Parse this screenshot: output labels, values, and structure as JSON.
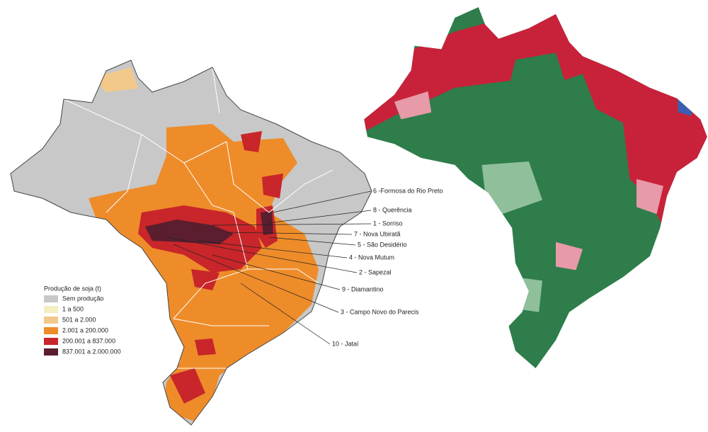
{
  "legend": {
    "title": "Produção de soja (t)",
    "items": [
      {
        "label": "Sem produção",
        "color": "#c8c8c8"
      },
      {
        "label": "1 a 500",
        "color": "#f5eec0"
      },
      {
        "label": "501 a 2.000",
        "color": "#f2c98a"
      },
      {
        "label": "2.001 a 200.000",
        "color": "#ee8c2a"
      },
      {
        "label": "200.001 a 837.000",
        "color": "#c8262a"
      },
      {
        "label": "837.001 a 2.000.000",
        "color": "#5a1e2e"
      }
    ]
  },
  "cities": [
    "6 -Formosa do Rio Preto",
    "8 - Querência",
    "1 - Sorriso",
    "7 - Nova Ubiratã",
    "5 - São Desidério",
    "4 - Nova Mutum",
    "2 - Sapezal",
    "9 - Diamantino",
    "3 - Campo Novo do Parecis",
    "10 - Jataí"
  ]
}
